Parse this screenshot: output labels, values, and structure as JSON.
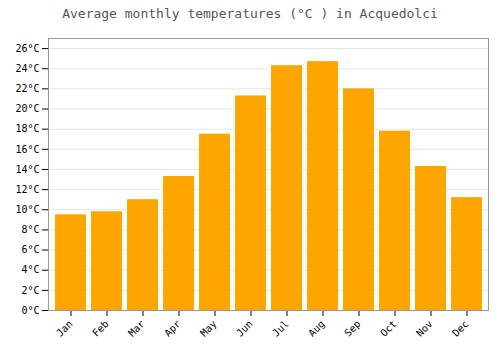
{
  "chart_data": {
    "type": "bar",
    "title": "Average monthly temperatures (°C ) in Acquedolci",
    "categories": [
      "Jan",
      "Feb",
      "Mar",
      "Apr",
      "May",
      "Jun",
      "Jul",
      "Aug",
      "Sep",
      "Oct",
      "Nov",
      "Dec"
    ],
    "values": [
      9.5,
      9.8,
      11.0,
      13.3,
      17.5,
      21.3,
      24.3,
      24.7,
      22.0,
      17.8,
      14.3,
      11.2
    ],
    "color": "#FFA500",
    "ylim": [
      0,
      27
    ],
    "yticks": [
      {
        "value": 0,
        "label": "0°C"
      },
      {
        "value": 2,
        "label": "2°C"
      },
      {
        "value": 4,
        "label": "4°C"
      },
      {
        "value": 6,
        "label": "6°C"
      },
      {
        "value": 8,
        "label": "8°C"
      },
      {
        "value": 10,
        "label": "10°C"
      },
      {
        "value": 12,
        "label": "12°C"
      },
      {
        "value": 14,
        "label": "14°C"
      },
      {
        "value": 16,
        "label": "16°C"
      },
      {
        "value": 18,
        "label": "18°C"
      },
      {
        "value": 20,
        "label": "20°C"
      },
      {
        "value": 22,
        "label": "22°C"
      },
      {
        "value": 24,
        "label": "24°C"
      },
      {
        "value": 26,
        "label": "26°C"
      }
    ],
    "grid": true
  }
}
